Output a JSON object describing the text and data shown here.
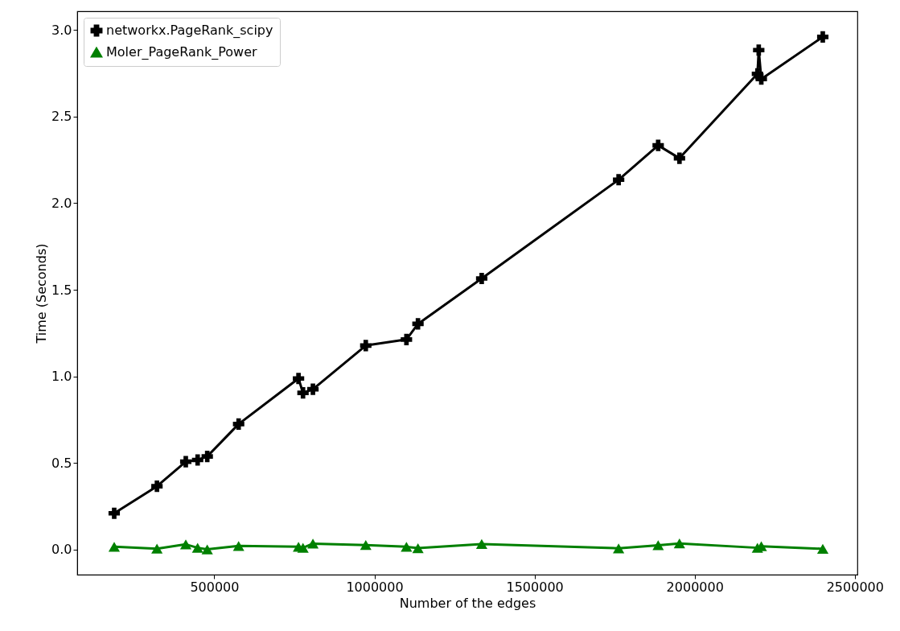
{
  "chart_data": {
    "type": "line",
    "xlabel": "Number of the edges",
    "ylabel": "Time (Seconds)",
    "x": [
      187500,
      321000,
      411000,
      448000,
      478000,
      576000,
      763000,
      777000,
      808000,
      973000,
      1100000,
      1136000,
      1335000,
      1762500,
      1886000,
      1952500,
      2196000,
      2200000,
      2208000,
      2400000
    ],
    "series": [
      {
        "name": "networkx.PageRank_scipy",
        "color": "#000000",
        "marker": "cross",
        "values": [
          0.21,
          0.366,
          0.508,
          0.518,
          0.538,
          0.725,
          0.988,
          0.905,
          0.926,
          1.178,
          1.213,
          1.303,
          1.565,
          2.135,
          2.333,
          2.259,
          2.746,
          2.883,
          2.716,
          2.959
        ]
      },
      {
        "name": "Moler_PageRank_Power",
        "color": "#008000",
        "marker": "triangle",
        "values": [
          0.017,
          0.006,
          0.031,
          0.011,
          0.002,
          0.022,
          0.017,
          0.011,
          0.035,
          0.027,
          0.017,
          0.009,
          0.033,
          0.008,
          0.026,
          0.036,
          0.011,
          null,
          0.02,
          0.005
        ]
      }
    ],
    "xlim": [
      72000,
      2508000
    ],
    "xticks": [
      500000,
      1000000,
      1500000,
      2000000,
      2500000
    ],
    "ylim": [
      -0.144,
      3.107
    ],
    "yticks": [
      {
        "value": 0,
        "label": "0.0"
      },
      {
        "value": 0.5,
        "label": "0.5"
      },
      {
        "value": 1,
        "label": "1.0"
      },
      {
        "value": 1.5,
        "label": "1.5"
      },
      {
        "value": 2,
        "label": "2.0"
      },
      {
        "value": 2.5,
        "label": "2.5"
      },
      {
        "value": 3,
        "label": "3.0"
      }
    ],
    "grid": false,
    "legend": "top left",
    "line_style": "solid"
  }
}
